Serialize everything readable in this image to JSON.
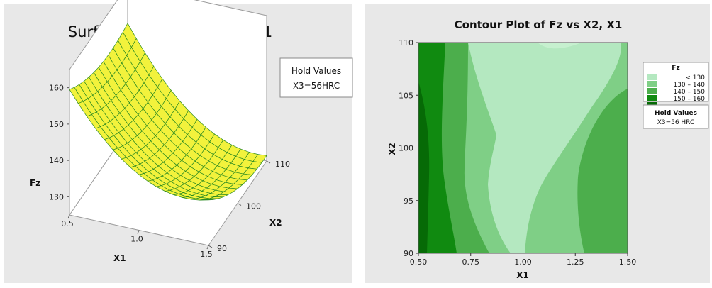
{
  "chart_data": [
    {
      "type": "surface",
      "title": "Surface Plot of Fz vs X2, X1",
      "xlabel": "X1",
      "ylabel": "X2",
      "zlabel": "Fz",
      "x_ticks": [
        "0.5",
        "1.0",
        "1.5"
      ],
      "y_ticks": [
        "90",
        "100",
        "110"
      ],
      "z_ticks": [
        "130",
        "140",
        "150",
        "160"
      ],
      "xlim": [
        0.5,
        1.5
      ],
      "ylim": [
        90,
        110
      ],
      "zlim": [
        125,
        165
      ],
      "hold_values": {
        "title": "Hold Values",
        "value": "X3=56HRC"
      },
      "surface_color": "#f2f23c",
      "mesh_color": "#2a8a20"
    },
    {
      "type": "contour",
      "title": "Contour Plot of Fz vs X2, X1",
      "xlabel": "X1",
      "ylabel": "X2",
      "x_ticks": [
        "0.50",
        "0.75",
        "1.00",
        "1.25",
        "1.50"
      ],
      "y_ticks": [
        "90",
        "95",
        "100",
        "105",
        "110"
      ],
      "xlim": [
        0.5,
        1.5
      ],
      "ylim": [
        90,
        110
      ],
      "legend": {
        "title": "Fz",
        "entries": [
          {
            "label": "< 130",
            "color": "#b4e8c0"
          },
          {
            "label": "130 – 140",
            "color": "#7fcf86"
          },
          {
            "label": "140 – 150",
            "color": "#4cae4c"
          },
          {
            "label": "150 – 160",
            "color": "#108a10"
          },
          {
            "label": "",
            "color": "#066a06"
          }
        ]
      },
      "hold_values": {
        "title": "Hold Values",
        "value": "X3=56 HRC"
      }
    }
  ]
}
